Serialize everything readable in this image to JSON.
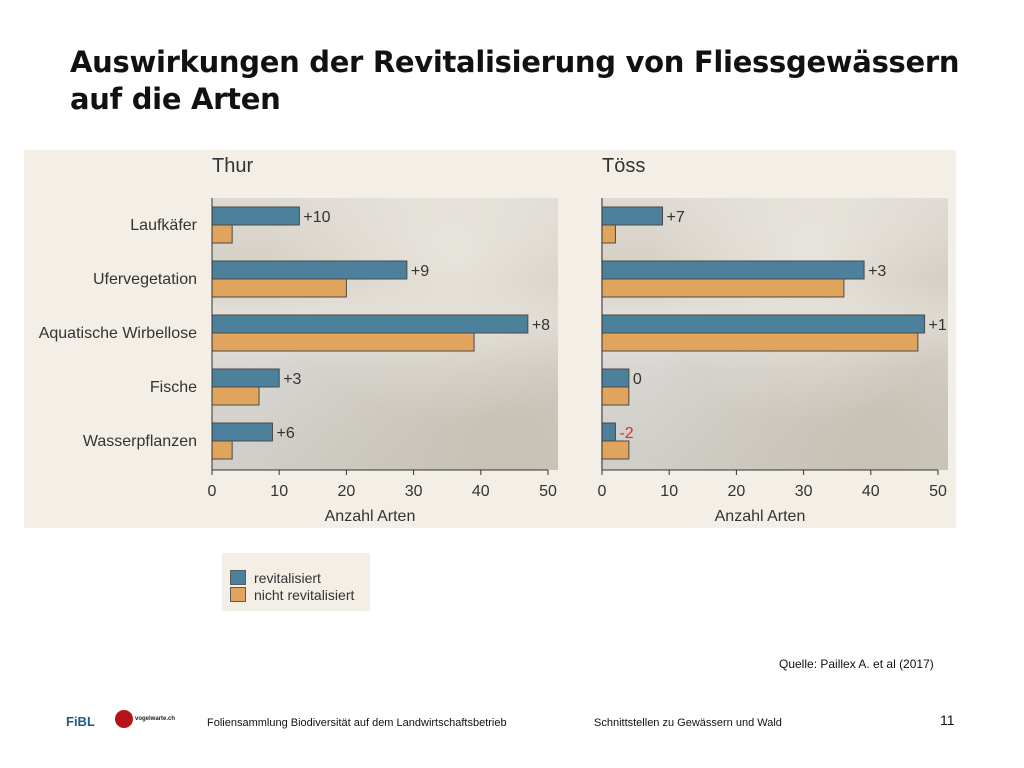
{
  "slide": {
    "title_lines": [
      "Auswirkungen der Revitalisierung von Fliessgewässern",
      "auf die Arten"
    ],
    "source": "Quelle: Paillex A. et al (2017)",
    "footer": {
      "logo_fibl": "FiBL",
      "logo_partner": "vogelwarte.ch",
      "left": "Foliensammlung Biodiversität auf dem Landwirtschaftsbetrieb",
      "right": "Schnittstellen zu Gewässern und Wald",
      "page": "11"
    }
  },
  "legend": {
    "revitalisiert": "revitalisiert",
    "nicht_revitalisiert": "nicht revitalisiert"
  },
  "colors": {
    "revitalisiert": "#4d809b",
    "nicht_revitalisiert": "#e0a45d",
    "negative_label": "#cc3333",
    "axis": "#333333"
  },
  "chart_data": [
    {
      "type": "bar",
      "orientation": "horizontal",
      "title": "Thur",
      "xlabel": "Anzahl Arten",
      "xlim": [
        0,
        50
      ],
      "xticks": [
        0,
        10,
        20,
        30,
        40,
        50
      ],
      "categories": [
        "Laufkäfer",
        "Ufervegetation",
        "Aquatische Wirbellose",
        "Fische",
        "Wasserpflanzen"
      ],
      "series": [
        {
          "name": "revitalisiert",
          "values": [
            13,
            29,
            47,
            10,
            9
          ]
        },
        {
          "name": "nicht revitalisiert",
          "values": [
            3,
            20,
            39,
            7,
            3
          ]
        }
      ],
      "data_labels": [
        "+10",
        "+9",
        "+8",
        "+3",
        "+6"
      ],
      "legend_position": "below"
    },
    {
      "type": "bar",
      "orientation": "horizontal",
      "title": "Töss",
      "xlabel": "Anzahl Arten",
      "xlim": [
        0,
        50
      ],
      "xticks": [
        0,
        10,
        20,
        30,
        40,
        50
      ],
      "categories": [
        "Laufkäfer",
        "Ufervegetation",
        "Aquatische Wirbellose",
        "Fische",
        "Wasserpflanzen"
      ],
      "series": [
        {
          "name": "revitalisiert",
          "values": [
            9,
            39,
            48,
            4,
            2
          ]
        },
        {
          "name": "nicht revitalisiert",
          "values": [
            2,
            36,
            47,
            4,
            4
          ]
        }
      ],
      "data_labels": [
        "+7",
        "+3",
        "+1",
        "0",
        "-2"
      ],
      "legend_position": "below"
    }
  ]
}
